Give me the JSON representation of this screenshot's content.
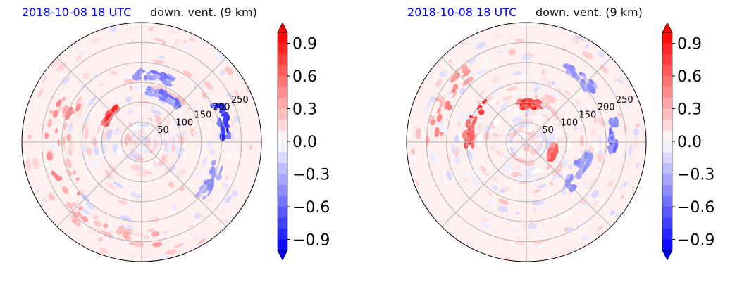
{
  "chart_data": [
    {
      "type": "heatmap",
      "projection": "polar",
      "title_left": "2018-10-08 18 UTC",
      "title_right": "down. vent. (9 km)",
      "title_left_color": "#0000ff",
      "radial_ticks": [
        50,
        100,
        150,
        200,
        250
      ],
      "rlim": [
        0,
        300
      ],
      "grid": true,
      "colorbar": {
        "ticks": [
          "0.9",
          "0.6",
          "0.3",
          "0.0",
          "−0.3",
          "−0.6",
          "−0.9"
        ],
        "range": [
          -1.0,
          1.0
        ],
        "cmap": "bwr",
        "extend": "both"
      },
      "features": [
        {
          "kind": "pos",
          "r": 105,
          "theta": 140,
          "value": 0.9,
          "rw": 14,
          "tw": 30
        },
        {
          "kind": "neg",
          "r": 130,
          "theta": 65,
          "value": -0.6,
          "rw": 20,
          "tw": 40
        },
        {
          "kind": "neg",
          "r": 170,
          "theta": 80,
          "value": -0.6,
          "rw": 25,
          "tw": 30
        },
        {
          "kind": "neg",
          "r": 210,
          "theta": 15,
          "value": -0.9,
          "rw": 30,
          "tw": 25
        },
        {
          "kind": "neg",
          "r": 200,
          "theta": -30,
          "value": -0.5,
          "rw": 25,
          "tw": 30
        },
        {
          "kind": "pos",
          "r": 210,
          "theta": 185,
          "value": 0.5,
          "rw": 60,
          "tw": 70
        },
        {
          "kind": "pos",
          "r": 240,
          "theta": 250,
          "value": 0.4,
          "rw": 40,
          "tw": 60
        }
      ]
    },
    {
      "type": "heatmap",
      "projection": "polar",
      "title_left": "2018-10-08 18 UTC",
      "title_right": "down. vent. (9 km)",
      "title_left_color": "#0000ff",
      "radial_ticks": [
        50,
        100,
        150,
        200,
        250
      ],
      "rlim": [
        0,
        300
      ],
      "grid": true,
      "colorbar": {
        "ticks": [
          "0.9",
          "0.6",
          "0.3",
          "0.0",
          "−0.3",
          "−0.6",
          "−0.9"
        ],
        "range": [
          -1.0,
          1.0
        ],
        "cmap": "bwr",
        "extend": "both"
      },
      "features": [
        {
          "kind": "pos",
          "r": 95,
          "theta": 85,
          "value": 1.0,
          "rw": 20,
          "tw": 30
        },
        {
          "kind": "pos",
          "r": 145,
          "theta": 160,
          "value": 0.9,
          "rw": 20,
          "tw": 50
        },
        {
          "kind": "pos",
          "r": 70,
          "theta": -20,
          "value": 0.7,
          "rw": 15,
          "tw": 25
        },
        {
          "kind": "neg",
          "r": 150,
          "theta": -30,
          "value": -0.5,
          "rw": 30,
          "tw": 35
        },
        {
          "kind": "neg",
          "r": 220,
          "theta": 5,
          "value": -0.7,
          "rw": 25,
          "tw": 20
        },
        {
          "kind": "neg",
          "r": 210,
          "theta": 50,
          "value": -0.5,
          "rw": 25,
          "tw": 25
        },
        {
          "kind": "pos",
          "r": 230,
          "theta": 150,
          "value": 0.5,
          "rw": 40,
          "tw": 60
        }
      ]
    }
  ]
}
